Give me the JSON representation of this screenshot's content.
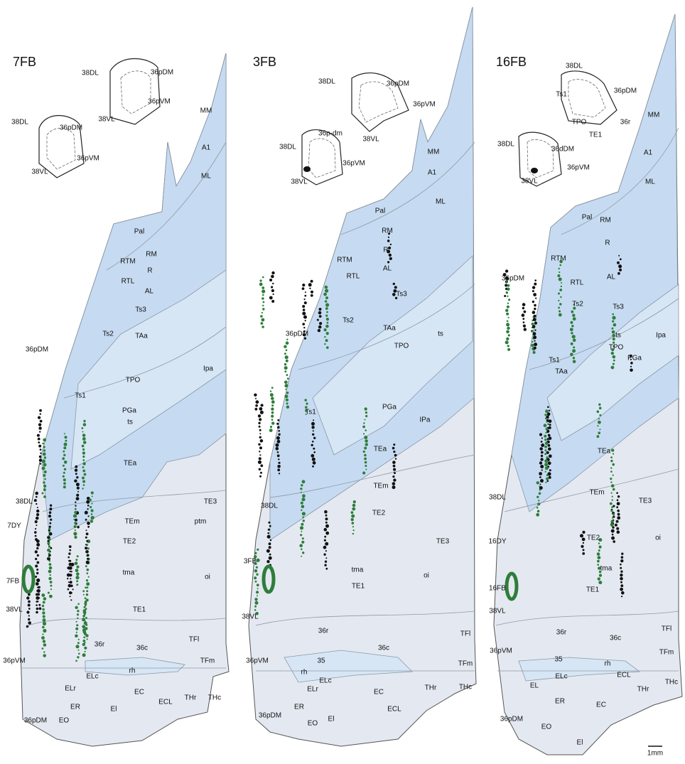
{
  "panels": [
    {
      "title": "7FB",
      "insets": [
        [
          "38DL",
          "36pDM",
          "36pVM",
          "38VL"
        ],
        [
          "38DL",
          "36pDM",
          "36pVM",
          "38VL"
        ]
      ],
      "regions": [
        "MM",
        "A1",
        "ML",
        "Pal",
        "RM",
        "RTM",
        "R",
        "RTL",
        "AL",
        "Ts3",
        "Ts2",
        "TAa",
        "36pDM",
        "Ipa",
        "TPO",
        "Ts1",
        "PGa",
        "ts",
        "TEa",
        "38DL",
        "TE3",
        "TEm",
        "ptm",
        "7DY",
        "TE2",
        "tma",
        "oi",
        "7FB",
        "38VL",
        "TE1",
        "36r",
        "36c",
        "TFl",
        "36pVM",
        "TFm",
        "rh",
        "ELc",
        "ELr",
        "EC",
        "THr",
        "THc",
        "ECL",
        "ER",
        "El",
        "36pDM",
        "EO"
      ]
    },
    {
      "title": "3FB",
      "insets": [
        [
          "38DL",
          "36pDM",
          "36pVM",
          "38VL"
        ],
        [
          "36p-dm",
          "38DL",
          "36pVM",
          "38VL"
        ]
      ],
      "regions": [
        "MM",
        "A1",
        "ML",
        "Pal",
        "RM",
        "R",
        "RTM",
        "RTL",
        "AL",
        "Ts3",
        "36pDM",
        "Ts2",
        "TAa",
        "ts",
        "TPO",
        "Ts1",
        "PGa",
        "IPa",
        "TEa",
        "TEm",
        "38DL",
        "TE2",
        "TE3",
        "3FB",
        "tma",
        "oi",
        "TE1",
        "38VL",
        "36r",
        "TFl",
        "36c",
        "36pVM",
        "35",
        "TFm",
        "rh",
        "ELc",
        "ELr",
        "EC",
        "THr",
        "THc",
        "ER",
        "ECL",
        "El",
        "36pDM",
        "EO"
      ]
    },
    {
      "title": "16FB",
      "insets": [
        [
          "38DL",
          "Ts1",
          "36pDM",
          "TPO",
          "36r",
          "TE1"
        ],
        [
          "38DL",
          "36dDM",
          "36pVM",
          "38VL"
        ]
      ],
      "regions": [
        "MM",
        "A1",
        "ML",
        "Pal",
        "RM",
        "R",
        "RTM",
        "36pDM",
        "RTL",
        "AL",
        "Ts2",
        "Ts3",
        "ts",
        "Ipa",
        "TPO",
        "Ts1",
        "TAa",
        "PGa",
        "TEa",
        "38DL",
        "TEm",
        "TE3",
        "TE2",
        "oi",
        "16DY",
        "tma",
        "16FB",
        "TE1",
        "38VL",
        "TFl",
        "36r",
        "36c",
        "36pVM",
        "35",
        "TFm",
        "rh",
        "EL",
        "ELc",
        "ECL",
        "THr",
        "THc",
        "ER",
        "EC",
        "36pDM",
        "EO",
        "El"
      ]
    }
  ],
  "scale_bar": "1mm"
}
